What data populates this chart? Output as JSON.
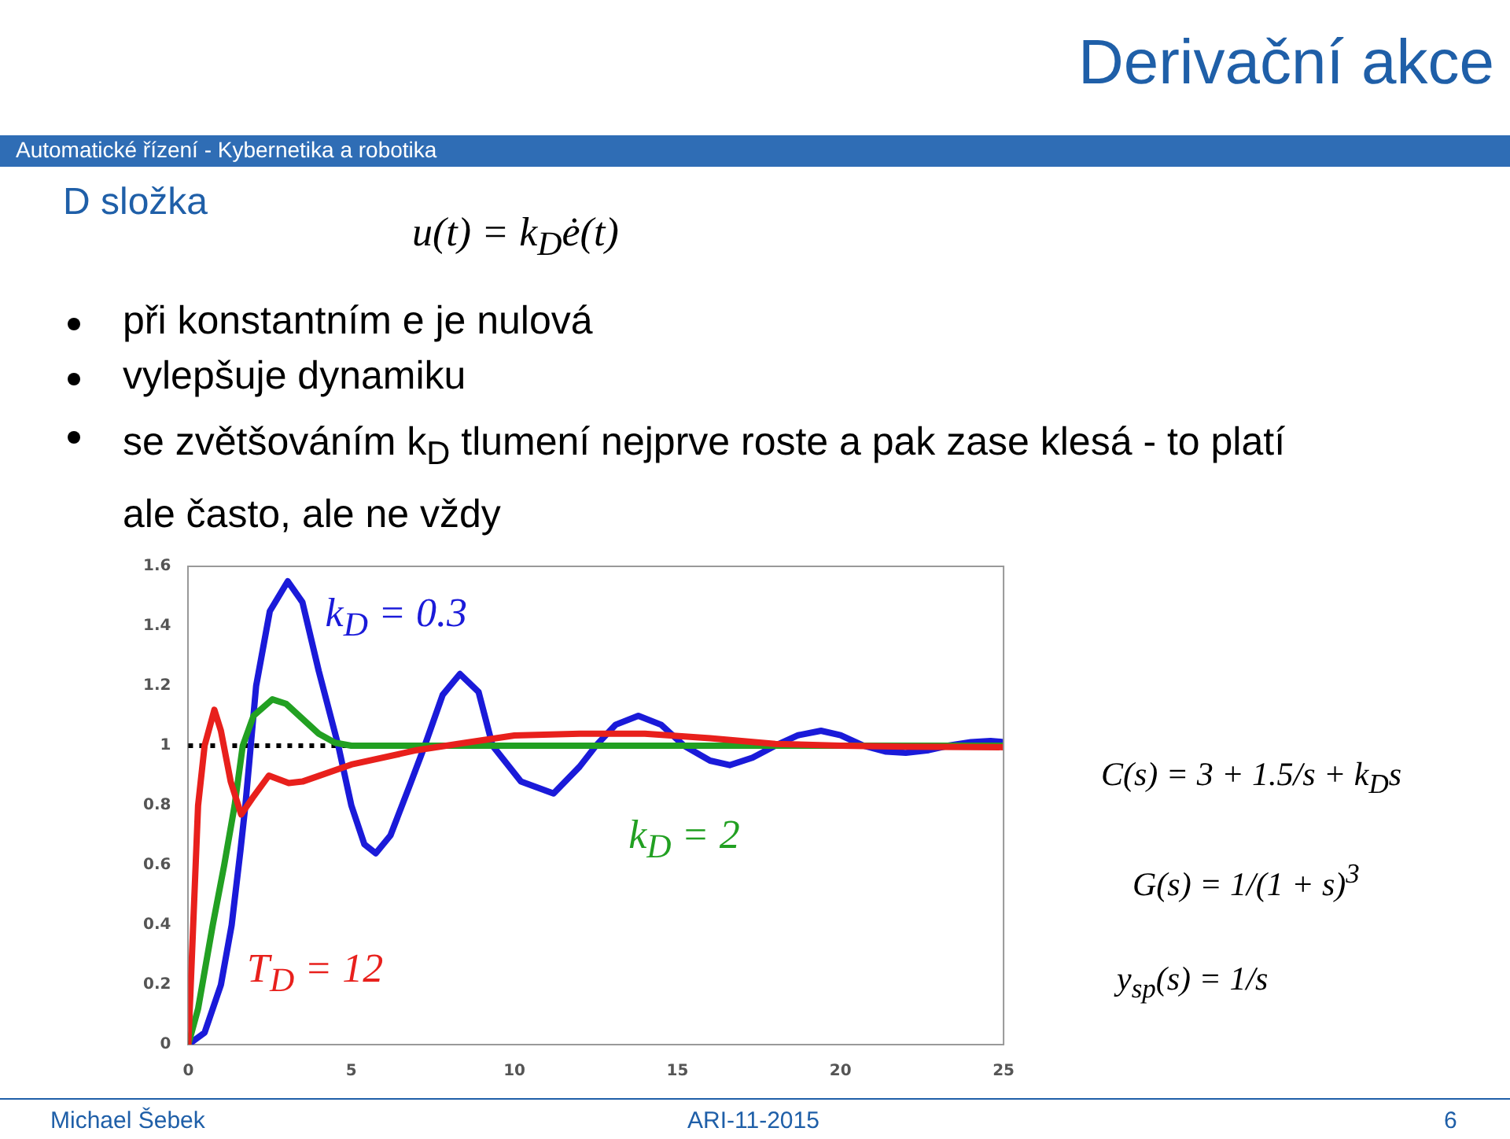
{
  "chart_data": {
    "type": "line",
    "title": "Derivační akce",
    "subtitle": "Automatické řízení - Kybernetika a robotika",
    "annotations": [
      "D složka",
      "u(t) = k$_{D}$ė(t)",
      "při konstantním e je nulová",
      "vylepšuje dynamiku",
      "se zvětšováním k$_{D}$ tlumení nejprve roste a pak zase klesá - to platí ale často, ale ne vždy",
      "C(s) = 3 + 1.5/s + k$_{D}$s",
      "G(s) = 1/(1 + s)$^{3}$",
      "y$_{sp}$(s) = 1/s",
      "Michael Šebek",
      "ARI-11-2015",
      "6"
    ],
    "series": [
      {
        "name": "k$_{D}$ = 0.3",
        "color": "#1a1ad9",
        "x": [
          0,
          0.5,
          1,
          1.33,
          1.6,
          1.75,
          2.08,
          2.5,
          3.05,
          3.5,
          4,
          4.6,
          5,
          5.4,
          5.75,
          6.2,
          6.8,
          7.25,
          7.8,
          8.33,
          8.9,
          9.33,
          10.2,
          11.2,
          12,
          12.5,
          13.1,
          13.8,
          14.5,
          15.2,
          16,
          16.6,
          17.3,
          18,
          18.7,
          19.4,
          20,
          20.7,
          21.4,
          22,
          22.7,
          23.3,
          24,
          24.6,
          25
        ],
        "values": [
          0,
          0.04,
          0.2,
          0.4,
          0.65,
          0.8,
          1.2,
          1.45,
          1.55,
          1.48,
          1.25,
          1.0,
          0.8,
          0.67,
          0.64,
          0.7,
          0.87,
          1.0,
          1.17,
          1.24,
          1.18,
          1.0,
          0.88,
          0.84,
          0.93,
          1.0,
          1.07,
          1.1,
          1.07,
          1.0,
          0.95,
          0.935,
          0.96,
          1.0,
          1.035,
          1.05,
          1.035,
          1.0,
          0.98,
          0.976,
          0.985,
          1.0,
          1.012,
          1.016,
          1.012
        ]
      },
      {
        "name": "k$_{D}$ = 2",
        "color": "#22a022",
        "x": [
          0,
          0.3,
          0.75,
          1.1,
          1.42,
          1.67,
          2,
          2.58,
          3,
          3.5,
          4,
          4.5,
          5,
          6,
          25
        ],
        "values": [
          0,
          0.12,
          0.4,
          0.6,
          0.8,
          1.0,
          1.1,
          1.155,
          1.14,
          1.09,
          1.04,
          1.01,
          1.0,
          1.0,
          1.0
        ]
      },
      {
        "name": "T$_{D}$ = 12",
        "color": "#e8201c",
        "x": [
          0,
          0.15,
          0.3,
          0.5,
          0.8,
          1.0,
          1.3,
          1.62,
          2,
          2.47,
          3.08,
          3.5,
          5,
          7,
          8.5,
          10,
          12,
          14,
          16,
          18,
          20,
          22,
          25
        ],
        "values": [
          0,
          0.4,
          0.8,
          1.0,
          1.12,
          1.05,
          0.88,
          0.77,
          0.83,
          0.9,
          0.875,
          0.88,
          0.937,
          0.985,
          1.01,
          1.034,
          1.04,
          1.04,
          1.025,
          1.006,
          1.0,
          0.997,
          0.995
        ]
      }
    ],
    "xlim": [
      0,
      25
    ],
    "xticks": [
      0,
      5,
      10,
      15,
      20,
      25
    ],
    "ylim": [
      0,
      1.6
    ],
    "yticks": [
      0,
      0.2,
      0.4,
      0.6,
      0.8,
      1,
      1.2,
      1.4,
      1.6
    ],
    "ref_lines": [
      {
        "axis": "y",
        "value": 1,
        "color": "#000000",
        "line_style": "dotted"
      }
    ],
    "grid": false,
    "legend": false,
    "marker": "none",
    "line_style": "solid"
  }
}
